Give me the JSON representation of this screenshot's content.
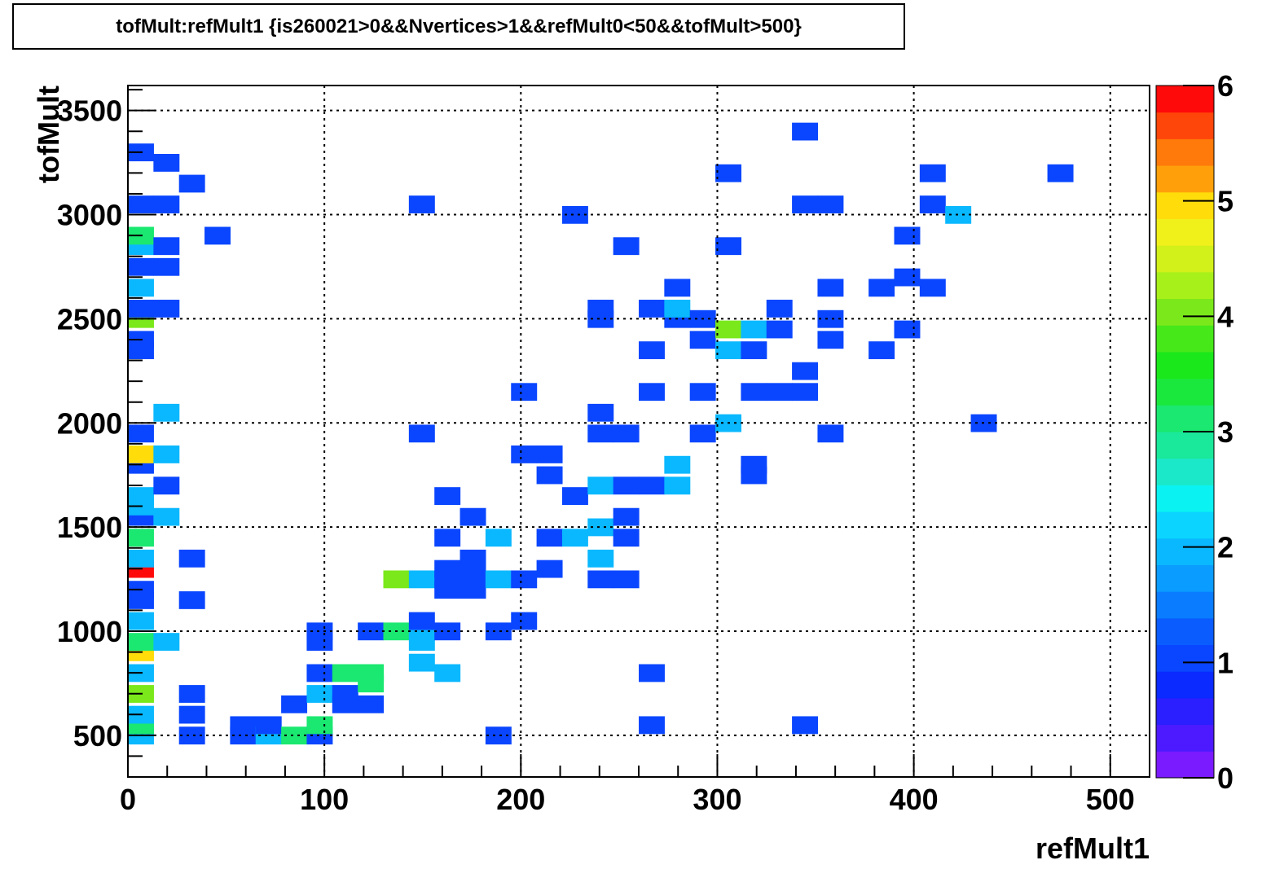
{
  "chart_data": {
    "type": "heatmap",
    "title": "tofMult:refMult1 {is260021>0&&Nvertices>1&&refMult0<50&&tofMult>500}",
    "xlabel": "refMult1",
    "ylabel": "tofMult",
    "xlim": [
      0,
      520
    ],
    "ylim": [
      300,
      3620
    ],
    "x_ticks": [
      0,
      100,
      200,
      300,
      400,
      500
    ],
    "y_ticks": [
      500,
      1000,
      1500,
      2000,
      2500,
      3000,
      3500
    ],
    "grid": true,
    "bin_width_x": 13,
    "bin_width_y": 83,
    "colorbar": {
      "min": 0,
      "max": 6,
      "ticks": [
        0,
        1,
        2,
        3,
        4,
        5,
        6
      ],
      "colors": [
        "#7a1aff",
        "#4d1aff",
        "#2b1fff",
        "#0a2aff",
        "#0a46ff",
        "#0a5cff",
        "#0a7cff",
        "#0a9cff",
        "#0ab8ff",
        "#0ad4ff",
        "#0af2f2",
        "#1ae8c8",
        "#1ae89a",
        "#1ae870",
        "#1ae83c",
        "#1ae81a",
        "#46e81a",
        "#7ae81a",
        "#a8f01a",
        "#d2f01a",
        "#f0f01a",
        "#ffdc0a",
        "#ffa00a",
        "#ff7a0a",
        "#ff460a",
        "#ff0a0a"
      ]
    },
    "cells": [
      [
        0,
        500,
        2
      ],
      [
        0,
        550,
        3
      ],
      [
        0,
        600,
        2
      ],
      [
        0,
        700,
        4
      ],
      [
        0,
        800,
        2
      ],
      [
        0,
        900,
        5
      ],
      [
        0,
        950,
        3
      ],
      [
        0,
        1050,
        2
      ],
      [
        0,
        1150,
        1
      ],
      [
        0,
        1200,
        1
      ],
      [
        0,
        1300,
        6
      ],
      [
        0,
        1350,
        2
      ],
      [
        0,
        1450,
        3
      ],
      [
        0,
        1550,
        1
      ],
      [
        0,
        1600,
        2
      ],
      [
        0,
        1650,
        2
      ],
      [
        0,
        1800,
        1
      ],
      [
        0,
        1850,
        5
      ],
      [
        0,
        1950,
        1
      ],
      [
        0,
        2350,
        1
      ],
      [
        0,
        2400,
        1
      ],
      [
        0,
        2500,
        4
      ],
      [
        0,
        2550,
        1
      ],
      [
        0,
        2650,
        2
      ],
      [
        0,
        2750,
        1
      ],
      [
        0,
        2850,
        2
      ],
      [
        0,
        2900,
        3
      ],
      [
        0,
        3050,
        1
      ],
      [
        0,
        3300,
        1
      ],
      [
        13,
        950,
        2
      ],
      [
        13,
        1550,
        2
      ],
      [
        13,
        1700,
        1
      ],
      [
        13,
        1850,
        2
      ],
      [
        13,
        2050,
        2
      ],
      [
        13,
        2550,
        1
      ],
      [
        13,
        2750,
        1
      ],
      [
        13,
        2850,
        1
      ],
      [
        13,
        3050,
        1
      ],
      [
        13,
        3250,
        1
      ],
      [
        26,
        500,
        1
      ],
      [
        26,
        600,
        1
      ],
      [
        26,
        700,
        1
      ],
      [
        26,
        1150,
        1
      ],
      [
        26,
        1350,
        1
      ],
      [
        26,
        3150,
        1
      ],
      [
        39,
        2900,
        1
      ],
      [
        52,
        500,
        1
      ],
      [
        52,
        550,
        1
      ],
      [
        65,
        500,
        2
      ],
      [
        65,
        550,
        1
      ],
      [
        78,
        500,
        3
      ],
      [
        78,
        650,
        1
      ],
      [
        91,
        500,
        1
      ],
      [
        91,
        550,
        3
      ],
      [
        91,
        700,
        2
      ],
      [
        91,
        800,
        1
      ],
      [
        91,
        950,
        1
      ],
      [
        91,
        1000,
        1
      ],
      [
        104,
        650,
        1
      ],
      [
        104,
        700,
        1
      ],
      [
        104,
        800,
        3
      ],
      [
        117,
        650,
        1
      ],
      [
        117,
        750,
        3
      ],
      [
        117,
        800,
        3
      ],
      [
        117,
        1000,
        1
      ],
      [
        130,
        1000,
        3
      ],
      [
        130,
        1250,
        4
      ],
      [
        143,
        850,
        2
      ],
      [
        143,
        950,
        2
      ],
      [
        143,
        1000,
        2
      ],
      [
        143,
        1050,
        1
      ],
      [
        143,
        1250,
        2
      ],
      [
        143,
        1950,
        1
      ],
      [
        143,
        3050,
        1
      ],
      [
        156,
        800,
        2
      ],
      [
        156,
        1000,
        1
      ],
      [
        156,
        1200,
        1
      ],
      [
        156,
        1250,
        1
      ],
      [
        156,
        1300,
        1
      ],
      [
        156,
        1450,
        1
      ],
      [
        156,
        1650,
        1
      ],
      [
        169,
        1200,
        1
      ],
      [
        169,
        1250,
        1
      ],
      [
        169,
        1300,
        1
      ],
      [
        169,
        1350,
        1
      ],
      [
        169,
        1550,
        1
      ],
      [
        182,
        500,
        1
      ],
      [
        182,
        1000,
        1
      ],
      [
        182,
        1250,
        2
      ],
      [
        182,
        1450,
        2
      ],
      [
        195,
        1050,
        1
      ],
      [
        195,
        1250,
        1
      ],
      [
        195,
        1850,
        1
      ],
      [
        195,
        2150,
        1
      ],
      [
        208,
        1300,
        1
      ],
      [
        208,
        1450,
        1
      ],
      [
        208,
        1750,
        1
      ],
      [
        208,
        1850,
        1
      ],
      [
        221,
        1450,
        2
      ],
      [
        221,
        1650,
        1
      ],
      [
        221,
        3000,
        1
      ],
      [
        234,
        1250,
        1
      ],
      [
        234,
        1350,
        2
      ],
      [
        234,
        1500,
        2
      ],
      [
        234,
        1700,
        2
      ],
      [
        234,
        1950,
        1
      ],
      [
        234,
        2050,
        1
      ],
      [
        234,
        2500,
        1
      ],
      [
        234,
        2550,
        1
      ],
      [
        247,
        1250,
        1
      ],
      [
        247,
        1450,
        1
      ],
      [
        247,
        1550,
        1
      ],
      [
        247,
        1700,
        1
      ],
      [
        247,
        1950,
        1
      ],
      [
        247,
        2850,
        1
      ],
      [
        260,
        550,
        1
      ],
      [
        260,
        800,
        1
      ],
      [
        260,
        1700,
        1
      ],
      [
        260,
        2150,
        1
      ],
      [
        260,
        2350,
        1
      ],
      [
        260,
        2550,
        1
      ],
      [
        273,
        1700,
        2
      ],
      [
        273,
        1800,
        2
      ],
      [
        273,
        2500,
        1
      ],
      [
        273,
        2550,
        2
      ],
      [
        273,
        2650,
        1
      ],
      [
        286,
        1950,
        1
      ],
      [
        286,
        2150,
        1
      ],
      [
        286,
        2400,
        1
      ],
      [
        286,
        2500,
        1
      ],
      [
        299,
        2000,
        2
      ],
      [
        299,
        2350,
        2
      ],
      [
        299,
        2450,
        4
      ],
      [
        299,
        2850,
        1
      ],
      [
        299,
        3200,
        1
      ],
      [
        312,
        1750,
        1
      ],
      [
        312,
        1800,
        1
      ],
      [
        312,
        2150,
        1
      ],
      [
        312,
        2350,
        1
      ],
      [
        312,
        2450,
        2
      ],
      [
        325,
        2150,
        1
      ],
      [
        325,
        2450,
        1
      ],
      [
        325,
        2550,
        1
      ],
      [
        338,
        550,
        1
      ],
      [
        338,
        2150,
        1
      ],
      [
        338,
        2250,
        1
      ],
      [
        338,
        3050,
        1
      ],
      [
        338,
        3400,
        1
      ],
      [
        351,
        1950,
        1
      ],
      [
        351,
        2400,
        1
      ],
      [
        351,
        2500,
        1
      ],
      [
        351,
        2650,
        1
      ],
      [
        351,
        3050,
        1
      ],
      [
        377,
        2350,
        1
      ],
      [
        377,
        2650,
        1
      ],
      [
        390,
        2450,
        1
      ],
      [
        390,
        2700,
        1
      ],
      [
        390,
        2900,
        1
      ],
      [
        403,
        2650,
        1
      ],
      [
        403,
        3050,
        1
      ],
      [
        403,
        3200,
        1
      ],
      [
        416,
        3000,
        2
      ],
      [
        429,
        2000,
        1
      ],
      [
        468,
        3200,
        1
      ]
    ]
  }
}
